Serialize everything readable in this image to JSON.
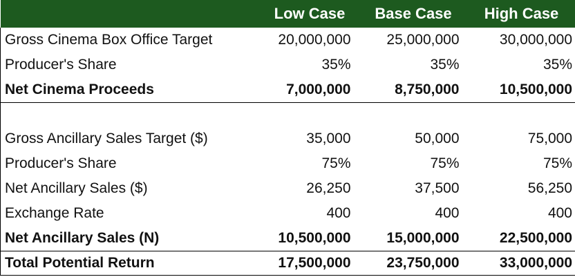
{
  "header": {
    "low": "Low Case",
    "base": "Base Case",
    "high": "High Case"
  },
  "rows": [
    {
      "label": "Gross Cinema Box Office Target",
      "low": "20,000,000",
      "base": "25,000,000",
      "high": "30,000,000"
    },
    {
      "label": "Producer's Share",
      "low": "35%",
      "base": "35%",
      "high": "35%"
    },
    {
      "label": "Net Cinema Proceeds",
      "low": "7,000,000",
      "base": "8,750,000",
      "high": "10,500,000"
    },
    {
      "label": "Gross Ancillary Sales Target ($)",
      "low": "35,000",
      "base": "50,000",
      "high": "75,000"
    },
    {
      "label": "Producer's Share",
      "low": "75%",
      "base": "75%",
      "high": "75%"
    },
    {
      "label": "Net Ancillary Sales ($)",
      "low": "26,250",
      "base": "37,500",
      "high": "56,250"
    },
    {
      "label": "Exchange Rate",
      "low": "400",
      "base": "400",
      "high": "400"
    },
    {
      "label": "Net Ancillary Sales (N)",
      "low": "10,500,000",
      "base": "15,000,000",
      "high": "22,500,000"
    },
    {
      "label": "Total Potential Return",
      "low": "17,500,000",
      "base": "23,750,000",
      "high": "33,000,000"
    }
  ],
  "colors": {
    "header_bg": "#1d5a1f",
    "header_text": "#ffffff"
  }
}
